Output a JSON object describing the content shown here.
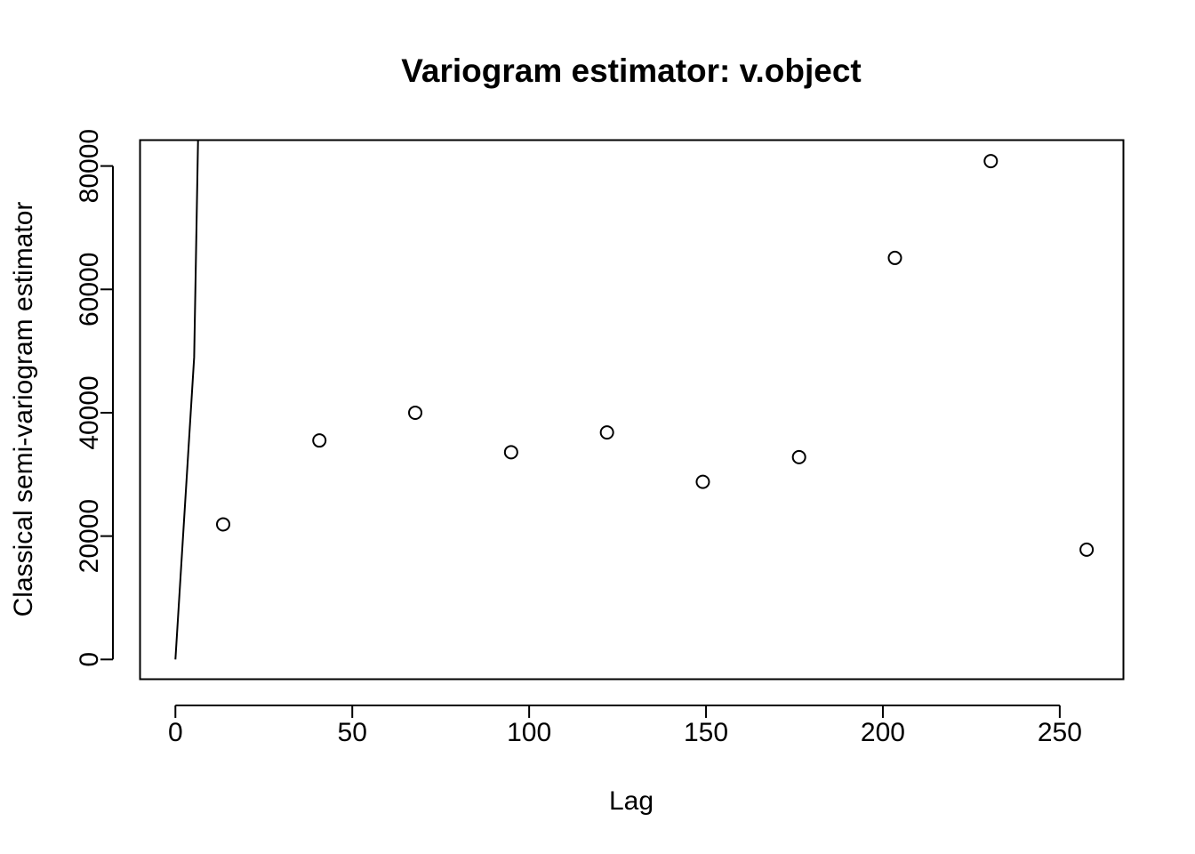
{
  "chart_data": {
    "type": "scatter",
    "title": "Variogram estimator: v.object",
    "xlabel": "Lag",
    "ylabel": "Classical semi-variogram estimator",
    "xlim": [
      -10,
      268
    ],
    "ylim": [
      -3200,
      84200
    ],
    "x_ticks": [
      0,
      50,
      100,
      150,
      200,
      250
    ],
    "y_ticks": [
      0,
      20000,
      40000,
      60000,
      80000
    ],
    "points": [
      {
        "x": 13.5,
        "y": 21900
      },
      {
        "x": 40.7,
        "y": 35500
      },
      {
        "x": 67.8,
        "y": 40000
      },
      {
        "x": 94.9,
        "y": 33600
      },
      {
        "x": 122.0,
        "y": 36800
      },
      {
        "x": 149.1,
        "y": 28800
      },
      {
        "x": 176.3,
        "y": 32800
      },
      {
        "x": 203.4,
        "y": 65100
      },
      {
        "x": 230.5,
        "y": 80800
      },
      {
        "x": 257.6,
        "y": 17800
      }
    ],
    "model_line": [
      {
        "x": 0,
        "y": 0
      },
      {
        "x": 5.3,
        "y": 49000
      },
      {
        "x": 6.4,
        "y": 84200
      }
    ],
    "grid": false,
    "legend": "none"
  }
}
